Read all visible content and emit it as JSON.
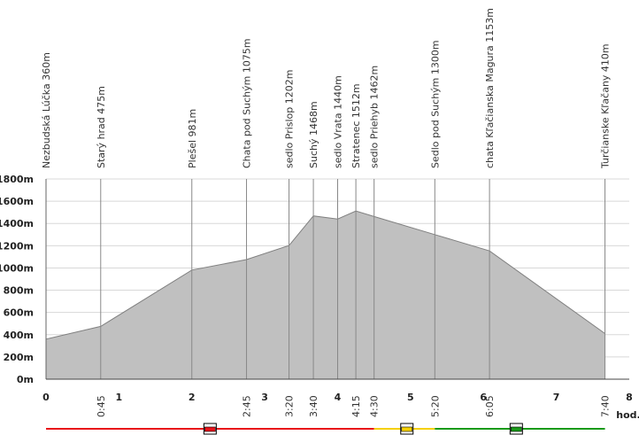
{
  "chart_data": {
    "type": "area",
    "title": "",
    "xlabel": "hod.",
    "ylabel": "",
    "xlim": [
      0,
      8
    ],
    "ylim": [
      0,
      1800
    ],
    "yticks": [
      {
        "value": 0,
        "label": "0m"
      },
      {
        "value": 200,
        "label": "200m"
      },
      {
        "value": 400,
        "label": "400m"
      },
      {
        "value": 600,
        "label": "600m"
      },
      {
        "value": 800,
        "label": "800m"
      },
      {
        "value": 1000,
        "label": "1000m"
      },
      {
        "value": 1200,
        "label": "1200m"
      },
      {
        "value": 1400,
        "label": "1400m"
      },
      {
        "value": 1600,
        "label": "1600m"
      },
      {
        "value": 1800,
        "label": "1800m"
      }
    ],
    "xticks": [
      {
        "value": 0,
        "label": "0"
      },
      {
        "value": 1,
        "label": "1"
      },
      {
        "value": 2,
        "label": "2"
      },
      {
        "value": 3,
        "label": "3"
      },
      {
        "value": 4,
        "label": "4"
      },
      {
        "value": 5,
        "label": "5"
      },
      {
        "value": 6,
        "label": "6"
      },
      {
        "value": 7,
        "label": "7"
      },
      {
        "value": 8,
        "label": "8"
      }
    ],
    "points": [
      {
        "x": 0,
        "y": 360,
        "time": "",
        "name": "Nezbudská Lúčka 360m"
      },
      {
        "x": 0.75,
        "y": 475,
        "time": "0:45",
        "name": "Starý hrad  475m"
      },
      {
        "x": 2,
        "y": 981,
        "time": "",
        "name": "Plešel 981m"
      },
      {
        "x": 2.75,
        "y": 1075,
        "time": "2:45",
        "name": "Chata pod Suchým 1075m"
      },
      {
        "x": 3.333,
        "y": 1202,
        "time": "3:20",
        "name": "sedlo Prislop 1202m"
      },
      {
        "x": 3.667,
        "y": 1468,
        "time": "3:40",
        "name": "Suchý 1468m"
      },
      {
        "x": 4,
        "y": 1440,
        "time": "",
        "name": "sedlo Vrata 1440m"
      },
      {
        "x": 4.25,
        "y": 1512,
        "time": "4:15",
        "name": "Stratenec 1512m"
      },
      {
        "x": 4.5,
        "y": 1462,
        "time": "4:30",
        "name": "sedlo Priehyb 1462m"
      },
      {
        "x": 5.333,
        "y": 1300,
        "time": "5:20",
        "name": "Sedlo pod Suchým 1300m"
      },
      {
        "x": 6.083,
        "y": 1153,
        "time": "6:05",
        "name": "chata Kľačianska Magura 1153m"
      },
      {
        "x": 7.667,
        "y": 410,
        "time": "7:40",
        "name": "Turčianske Kľačany 410m"
      }
    ],
    "trail_segments": [
      {
        "from": 0,
        "to": 4.5,
        "color": "#e8121a"
      },
      {
        "from": 4.5,
        "to": 5.333,
        "color": "#f5d000"
      },
      {
        "from": 5.333,
        "to": 7.667,
        "color": "#1a9a1a"
      }
    ],
    "trail_markers": [
      {
        "x": 2.25,
        "color": "#e8121a"
      },
      {
        "x": 4.95,
        "color": "#f5d000"
      },
      {
        "x": 6.45,
        "color": "#1a9a1a"
      }
    ],
    "fill_color": "#c0c0c0",
    "line_color": "#808080",
    "grid": true
  }
}
